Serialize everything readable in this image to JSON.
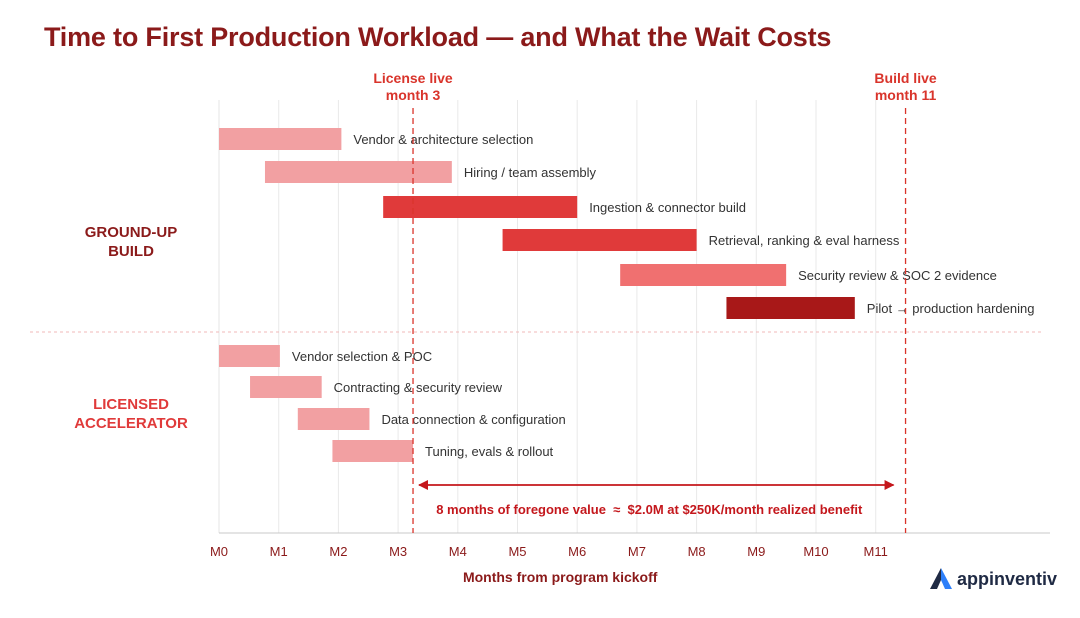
{
  "title": "Time to First Production Workload — and What the Wait Costs",
  "brand": {
    "name": "appinventiv",
    "icon": "triangle-logo-icon"
  },
  "colors": {
    "title": "#8b1a1a",
    "marker": "#d9342b",
    "arrow": "#c4171c",
    "grid": "#e9e9e9",
    "axis_text": "#8b1a1a"
  },
  "chart_data": {
    "type": "gantt",
    "title": "Time to First Production Workload — and What the Wait Costs",
    "xlabel": "Months from program kickoff",
    "ylabel": "",
    "x_ticks": [
      "M0",
      "M1",
      "M2",
      "M3",
      "M4",
      "M5",
      "M6",
      "M7",
      "M8",
      "M9",
      "M10",
      "M11"
    ],
    "xlim": [
      0,
      13.8
    ],
    "groups": [
      {
        "name": "GROUND-UP BUILD",
        "name_lines": [
          "GROUND-UP",
          "BUILD"
        ],
        "label_color": "#8b1a1a",
        "tasks": [
          {
            "label": "Vendor & architecture selection",
            "start": 0.0,
            "end": 2.05,
            "color": "#f2a0a2"
          },
          {
            "label": "Hiring / team assembly",
            "start": 0.77,
            "end": 3.9,
            "color": "#f2a0a2"
          },
          {
            "label": "Ingestion & connector build",
            "start": 2.75,
            "end": 6.0,
            "color": "#e03a3a"
          },
          {
            "label": "Retrieval, ranking & eval harness",
            "start": 4.75,
            "end": 8.0,
            "color": "#e03a3a"
          },
          {
            "label": "Security review & SOC 2 evidence",
            "start": 6.72,
            "end": 9.5,
            "color": "#f07070"
          },
          {
            "label": "Pilot → production hardening",
            "start": 8.5,
            "end": 10.65,
            "color": "#a81818"
          }
        ]
      },
      {
        "name": "LICENSED ACCELERATOR",
        "name_lines": [
          "LICENSED",
          "ACCELERATOR"
        ],
        "label_color": "#e03a3a",
        "tasks": [
          {
            "label": "Vendor selection & POC",
            "start": 0.0,
            "end": 1.02,
            "color": "#f2a0a2"
          },
          {
            "label": "Contracting & security review",
            "start": 0.52,
            "end": 1.72,
            "color": "#f2a0a2"
          },
          {
            "label": "Data connection & configuration",
            "start": 1.32,
            "end": 2.52,
            "color": "#f2a0a2"
          },
          {
            "label": "Tuning, evals & rollout",
            "start": 1.9,
            "end": 3.25,
            "color": "#f2a0a2"
          }
        ]
      }
    ],
    "markers": [
      {
        "x": 3.25,
        "label_lines": [
          "License live",
          "month 3"
        ],
        "color": "#d9342b"
      },
      {
        "x": 11.5,
        "label_lines": [
          "Build live",
          "month 11"
        ],
        "color": "#d9342b"
      }
    ],
    "annotation": {
      "from": 3.25,
      "to": 11.5,
      "text": "8 months of foregone value  ≈  $2.0M at $250K/month realized benefit"
    },
    "grid": true
  }
}
